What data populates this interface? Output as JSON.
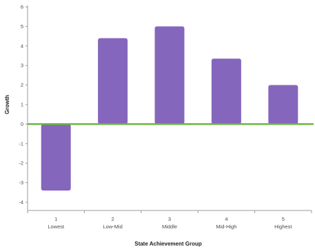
{
  "chart_data": {
    "type": "bar",
    "categories": [
      "1",
      "2",
      "3",
      "4",
      "5"
    ],
    "category_sublabels": [
      "Lowest",
      "Low-Mid",
      "Middle",
      "Mid-High",
      "Highest"
    ],
    "values": [
      -3.4,
      4.4,
      5.0,
      3.35,
      2.0
    ],
    "title": "",
    "xlabel": "State Achievement Group",
    "ylabel": "Growth",
    "ylim": [
      -4.5,
      6
    ],
    "yticks": [
      "6",
      "5",
      "4",
      "3",
      "2",
      "1",
      "0",
      "-1",
      "-2",
      "-3",
      "-4"
    ],
    "grid": false,
    "legend": "none"
  },
  "colors": {
    "bar": "#8566bd",
    "zero_line": "#6ab63c",
    "axis": "#9a9a9a",
    "text": "#4b4b4b"
  }
}
